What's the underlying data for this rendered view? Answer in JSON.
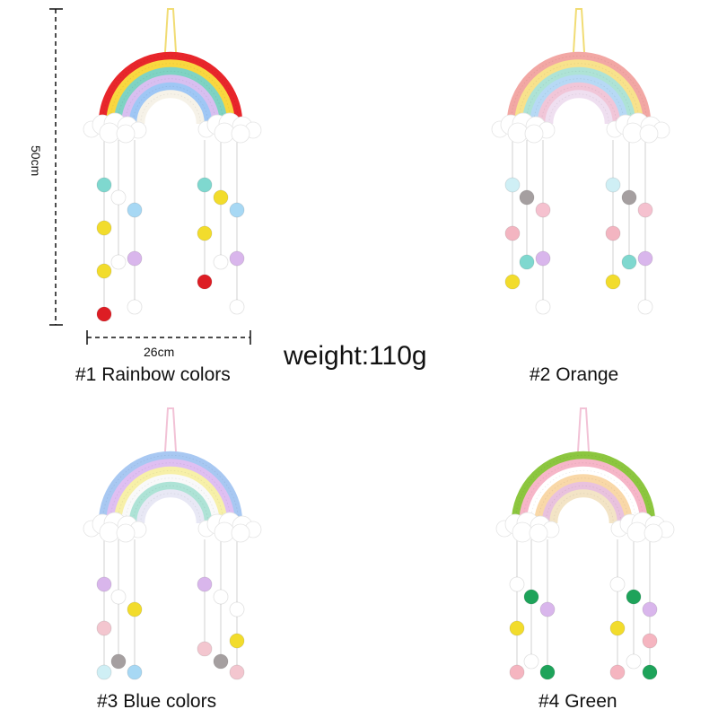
{
  "dimensions": {
    "height": "50cm",
    "width": "26cm"
  },
  "weight": "weight:110g",
  "products": [
    {
      "caption": "#1 Rainbow colors",
      "hanger_color": "#f1dc74",
      "arc_colors": [
        "#e8262b",
        "#f9d73f",
        "#7fd3c3",
        "#d8bff0",
        "#9fc7f5",
        "#f6f2e8"
      ],
      "pompoms": [
        [
          "#7fd8cf",
          "#f2dc2c",
          "#f2dc2c",
          "#dd1d24"
        ],
        [
          "#ffffff",
          "#ffffff"
        ],
        [
          "#a7d8f4",
          "#d9b6ec",
          "#ffffff"
        ],
        [
          "#7fd8cf",
          "#f2dc2c",
          "#dd1d24"
        ],
        [
          "#f2dc2c",
          "#ffffff"
        ],
        [
          "#a7d8f4",
          "#d9b6ec",
          "#ffffff"
        ]
      ]
    },
    {
      "caption": "#2 Orange",
      "hanger_color": "#f1dc74",
      "arc_colors": [
        "#f2a7a4",
        "#f8e28c",
        "#aee3d6",
        "#b7d9f5",
        "#f1c6d8",
        "#efdff0"
      ],
      "pompoms": [
        [
          "#cfeff5",
          "#f3b5c1",
          "#f2dc2c"
        ],
        [
          "#a59fa0",
          "#7fd8cf"
        ],
        [
          "#f5c1cf",
          "#d9b6ec",
          "#ffffff"
        ],
        [
          "#cfeff5",
          "#f3b5c1",
          "#f2dc2c"
        ],
        [
          "#a59fa0",
          "#7fd8cf"
        ],
        [
          "#f5c1cf",
          "#d9b6ec",
          "#ffffff"
        ]
      ]
    },
    {
      "caption": "#3 Blue colors",
      "hanger_color": "#f2c2d6",
      "arc_colors": [
        "#a8c8f2",
        "#dfbff2",
        "#f7f0a8",
        "#f9f9f9",
        "#aee3d6",
        "#e8e8f5"
      ],
      "pompoms": [
        [
          "#d9b6ec",
          "#f3c6cf",
          "#cfeff5"
        ],
        [
          "#ffffff",
          "#a59fa0"
        ],
        [
          "#f2dc2c",
          "#a7d8f4"
        ],
        [
          "#d9b6ec",
          "#f3c6cf"
        ],
        [
          "#ffffff",
          "#a59fa0"
        ],
        [
          "#ffffff",
          "#f2dc2c",
          "#f3c6cf"
        ]
      ]
    },
    {
      "caption": "#4 Green",
      "hanger_color": "#f2c2d6",
      "arc_colors": [
        "#8cc63f",
        "#f6b6c8",
        "#ffffff",
        "#f9d8a8",
        "#e9c2de",
        "#f3e4c6"
      ],
      "pompoms": [
        [
          "#ffffff",
          "#f2dc2c",
          "#f5b5c0"
        ],
        [
          "#1ea35a",
          "#ffffff"
        ],
        [
          "#d9b6ec",
          "#1ea35a"
        ],
        [
          "#ffffff",
          "#f2dc2c",
          "#f5b5c0"
        ],
        [
          "#1ea35a",
          "#ffffff"
        ],
        [
          "#d9b6ec",
          "#f5b5c0",
          "#1ea35a"
        ]
      ]
    }
  ]
}
